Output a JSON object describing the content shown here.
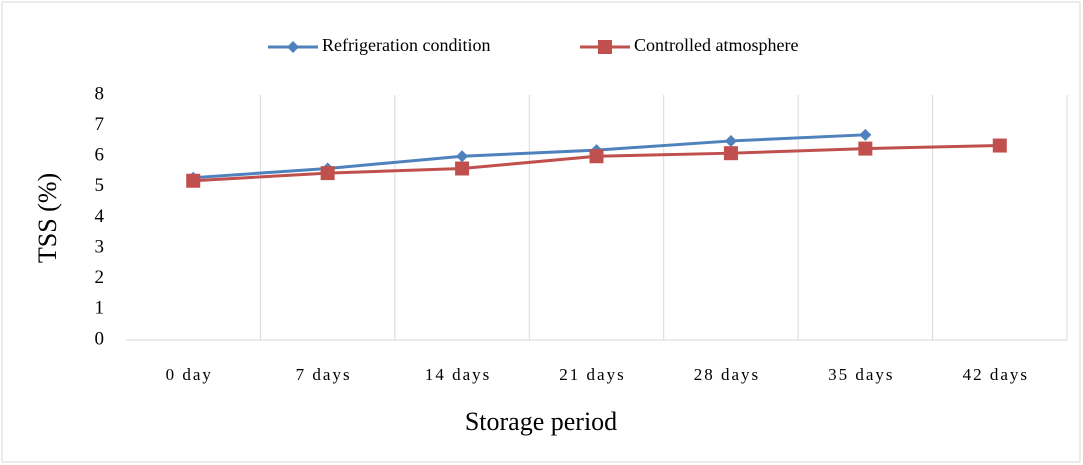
{
  "chart_data": {
    "type": "line",
    "categories": [
      "0 day",
      "7 days",
      "14 days",
      "21 days",
      "28 days",
      "35 days",
      "42 days"
    ],
    "series": [
      {
        "name": "Refrigeration condition",
        "color": "#4f81bd",
        "marker": "diamond",
        "values": [
          5.3,
          5.6,
          6.0,
          6.2,
          6.5,
          6.7,
          null
        ]
      },
      {
        "name": "Controlled atmosphere",
        "color": "#c0504d",
        "marker": "square",
        "values": [
          5.2,
          5.45,
          5.6,
          6.0,
          6.1,
          6.25,
          6.35
        ]
      }
    ],
    "ylim": [
      0,
      8
    ],
    "yticks": [
      0,
      1,
      2,
      3,
      4,
      5,
      6,
      7,
      8
    ],
    "ylabel": "TSS (%)",
    "xlabel": "Storage period",
    "xgrid": true,
    "legend": "top"
  }
}
